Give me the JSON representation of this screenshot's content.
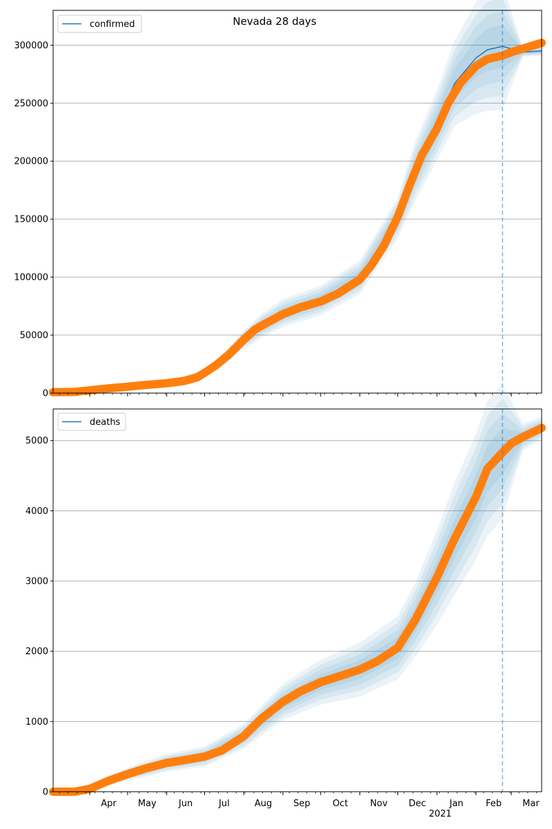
{
  "figure": {
    "suptitle": "Nevada 28 days"
  },
  "x_axis": {
    "month_labels": [
      "Apr",
      "May",
      "Jun",
      "Jul",
      "Aug",
      "Sep",
      "Oct",
      "Nov",
      "Dec",
      "Jan",
      "Feb",
      "Mar"
    ],
    "month_dates": [
      "2020-04-01",
      "2020-05-01",
      "2020-06-01",
      "2020-07-01",
      "2020-08-01",
      "2020-09-01",
      "2020-10-01",
      "2020-11-01",
      "2020-12-01",
      "2021-01-01",
      "2021-02-01",
      "2021-03-01"
    ],
    "year_label": "2021",
    "range": [
      "2020-03-03",
      "2021-03-25"
    ],
    "forecast_start": "2021-02-22"
  },
  "colors": {
    "model": "#1f77b4",
    "observed": "#ff7f0e",
    "band": "#1f77b4",
    "forecast_line": "#1f77b4",
    "grid": "#b0b0b0"
  },
  "chart_data": [
    {
      "type": "line",
      "legend": [
        "confirmed"
      ],
      "legend_position": "top-left",
      "grid": "horizontal",
      "ylim": [
        0,
        330000
      ],
      "yticks": [
        0,
        50000,
        100000,
        150000,
        200000,
        250000,
        300000
      ],
      "observed": {
        "x": [
          "2020-03-03",
          "2020-03-20",
          "2020-04-01",
          "2020-04-15",
          "2020-05-01",
          "2020-05-15",
          "2020-06-01",
          "2020-06-15",
          "2020-06-25",
          "2020-07-01",
          "2020-07-10",
          "2020-07-20",
          "2020-08-01",
          "2020-08-10",
          "2020-08-20",
          "2020-09-01",
          "2020-09-15",
          "2020-10-01",
          "2020-10-15",
          "2020-11-01",
          "2020-11-10",
          "2020-11-20",
          "2020-12-01",
          "2020-12-10",
          "2020-12-20",
          "2021-01-01",
          "2021-01-10",
          "2021-01-20",
          "2021-02-01",
          "2021-02-10",
          "2021-02-22",
          "2021-03-01",
          "2021-03-10",
          "2021-03-25"
        ],
        "y": [
          800,
          1000,
          2400,
          4000,
          5500,
          7000,
          8500,
          10500,
          13500,
          17500,
          24000,
          33000,
          46000,
          55000,
          61000,
          68000,
          74000,
          79000,
          86000,
          98000,
          110000,
          127000,
          152000,
          178000,
          205000,
          228000,
          250000,
          268000,
          282000,
          288000,
          291000,
          294000,
          297000,
          302000
        ]
      },
      "model": {
        "x": [
          "2020-03-03",
          "2020-04-01",
          "2020-05-01",
          "2020-06-01",
          "2020-07-01",
          "2020-07-20",
          "2020-08-01",
          "2020-08-15",
          "2020-09-01",
          "2020-10-01",
          "2020-11-01",
          "2020-12-01",
          "2020-12-15",
          "2021-01-01",
          "2021-01-15",
          "2021-02-01",
          "2021-02-10",
          "2021-02-22",
          "2021-03-10",
          "2021-03-25"
        ],
        "y": [
          800,
          2400,
          5500,
          8500,
          17500,
          33000,
          46000,
          58000,
          69000,
          80000,
          100000,
          151000,
          192000,
          231000,
          267000,
          289000,
          296000,
          299000,
          294000,
          295000
        ],
        "spread": [
          0,
          400,
          700,
          1000,
          2000,
          3500,
          5000,
          6500,
          7500,
          8000,
          9000,
          11000,
          16000,
          19000,
          23000,
          30000,
          33000,
          34000,
          2500,
          2500
        ]
      }
    },
    {
      "type": "line",
      "legend": [
        "deaths"
      ],
      "legend_position": "top-left",
      "grid": "horizontal",
      "ylim": [
        0,
        5450
      ],
      "yticks": [
        0,
        1000,
        2000,
        3000,
        4000,
        5000
      ],
      "observed": {
        "x": [
          "2020-03-03",
          "2020-03-20",
          "2020-04-01",
          "2020-04-15",
          "2020-05-01",
          "2020-05-15",
          "2020-06-01",
          "2020-06-15",
          "2020-07-01",
          "2020-07-15",
          "2020-08-01",
          "2020-08-15",
          "2020-09-01",
          "2020-09-15",
          "2020-10-01",
          "2020-10-15",
          "2020-11-01",
          "2020-11-15",
          "2020-12-01",
          "2020-12-15",
          "2021-01-01",
          "2021-01-15",
          "2021-02-01",
          "2021-02-10",
          "2021-02-22",
          "2021-03-01",
          "2021-03-10",
          "2021-03-25"
        ],
        "y": [
          0,
          0,
          40,
          150,
          250,
          330,
          410,
          450,
          500,
          590,
          790,
          1040,
          1280,
          1430,
          1560,
          1640,
          1740,
          1860,
          2050,
          2450,
          3050,
          3600,
          4200,
          4600,
          4830,
          4960,
          5050,
          5180
        ]
      },
      "model": {
        "x": [
          "2020-03-03",
          "2020-03-20",
          "2020-04-01",
          "2020-04-15",
          "2020-05-01",
          "2020-06-01",
          "2020-07-01",
          "2020-08-01",
          "2020-09-01",
          "2020-10-01",
          "2020-11-01",
          "2020-12-01",
          "2020-12-15",
          "2021-01-01",
          "2021-01-15",
          "2021-02-01",
          "2021-02-10",
          "2021-02-22",
          "2021-03-10",
          "2021-03-25"
        ],
        "y": [
          0,
          0,
          40,
          150,
          250,
          410,
          500,
          790,
          1280,
          1560,
          1740,
          2050,
          2450,
          3050,
          3600,
          4200,
          4600,
          4850,
          5050,
          5180
        ],
        "spread": [
          0,
          10,
          20,
          40,
          60,
          80,
          90,
          110,
          160,
          200,
          240,
          280,
          330,
          420,
          500,
          560,
          600,
          600,
          120,
          100
        ]
      }
    }
  ]
}
